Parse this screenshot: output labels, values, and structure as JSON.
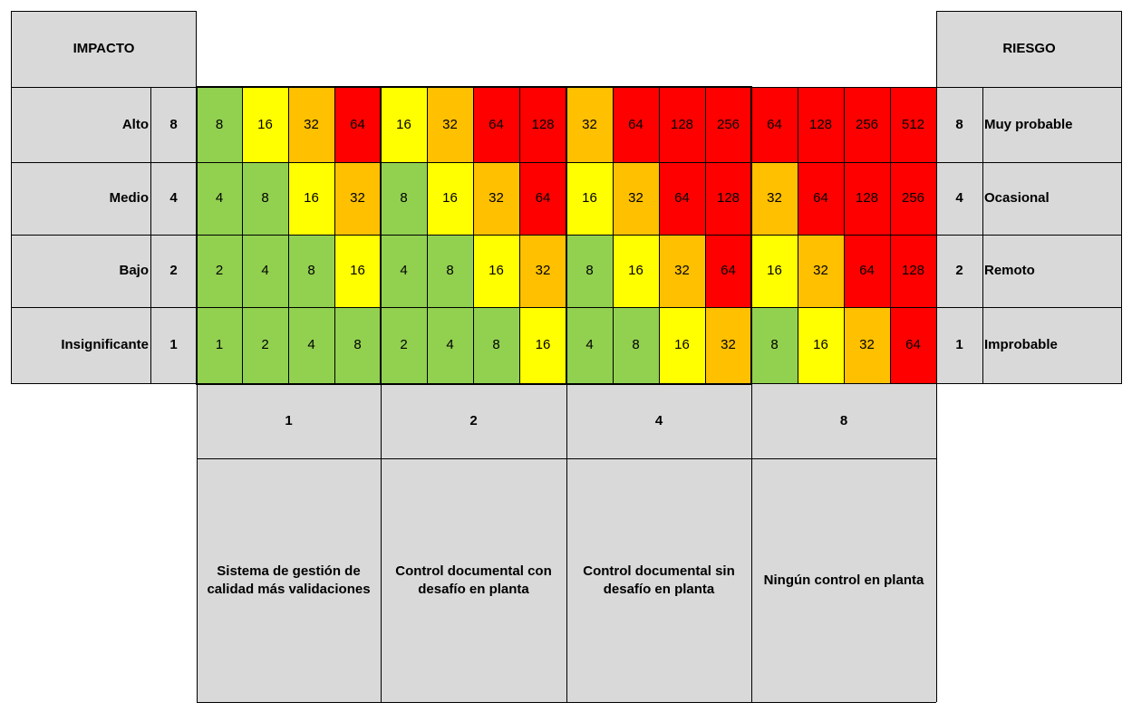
{
  "impacto_header": "IMPACTO",
  "riesgo_header": "RIESGO",
  "impact_rows": [
    {
      "label": "Alto",
      "value": "8"
    },
    {
      "label": "Medio",
      "value": "4"
    },
    {
      "label": "Bajo",
      "value": "2"
    },
    {
      "label": "Insignificante",
      "value": "1"
    }
  ],
  "risk_rows": [
    {
      "value": "8",
      "label": "Muy probable"
    },
    {
      "value": "4",
      "label": "Ocasional"
    },
    {
      "value": "2",
      "label": "Remoto"
    },
    {
      "value": "1",
      "label": "Improbable"
    }
  ],
  "matrix": [
    [
      "8",
      "16",
      "32",
      "64",
      "16",
      "32",
      "64",
      "128",
      "32",
      "64",
      "128",
      "256",
      "64",
      "128",
      "256",
      "512"
    ],
    [
      "4",
      "8",
      "16",
      "32",
      "8",
      "16",
      "32",
      "64",
      "16",
      "32",
      "64",
      "128",
      "32",
      "64",
      "128",
      "256"
    ],
    [
      "2",
      "4",
      "8",
      "16",
      "4",
      "8",
      "16",
      "32",
      "8",
      "16",
      "32",
      "64",
      "16",
      "32",
      "64",
      "128"
    ],
    [
      "1",
      "2",
      "4",
      "8",
      "2",
      "4",
      "8",
      "16",
      "4",
      "8",
      "16",
      "32",
      "8",
      "16",
      "32",
      "64"
    ]
  ],
  "control_groups": [
    {
      "value": "1",
      "description": "Sistema de gestión de calidad más validaciones"
    },
    {
      "value": "2",
      "description": "Control documental con desafío en planta"
    },
    {
      "value": "4",
      "description": "Control documental sin desafío en planta"
    },
    {
      "value": "8",
      "description": "Ningún control en planta"
    }
  ],
  "colors": {
    "green": "#92d050",
    "yellow": "#ffff00",
    "orange": "#ffc000",
    "red": "#ff0000",
    "gray": "#d9d9d9"
  }
}
